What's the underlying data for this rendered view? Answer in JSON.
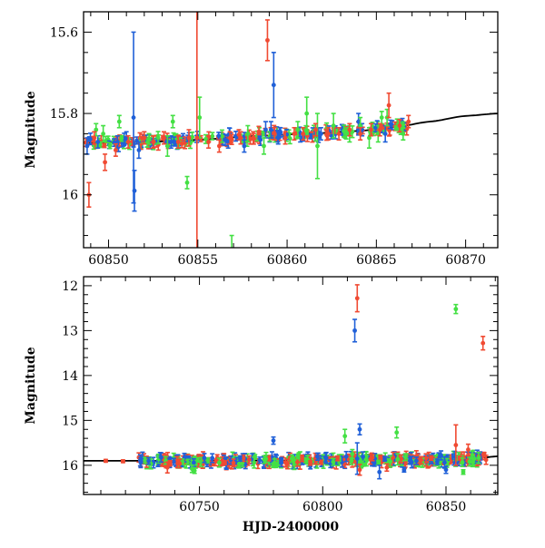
{
  "chart_data": [
    {
      "type": "scatter",
      "title": "",
      "xlabel": "",
      "ylabel": "Magnitude",
      "xlim": [
        60848.6,
        60871.8
      ],
      "ylim": [
        16.13,
        15.55
      ],
      "y_inverted": true,
      "x_ticks": [
        60850,
        60855,
        60860,
        60865,
        60870
      ],
      "x_tick_labels": [
        "60850",
        "60855",
        "60860",
        "60865",
        "60870"
      ],
      "y_ticks": [
        15.6,
        15.8,
        16.0
      ],
      "y_tick_labels": [
        "15.6",
        "15.8",
        "16"
      ],
      "grid": false,
      "legend": "none",
      "series": [
        {
          "color": "#2060d8",
          "points": [
            {
              "x": 60848.8,
              "y": 15.88,
              "err": 0.02
            },
            {
              "x": 60849.4,
              "y": 15.87,
              "err": 0.015
            },
            {
              "x": 60850.5,
              "y": 15.87,
              "err": 0.015
            },
            {
              "x": 60851.0,
              "y": 15.86,
              "err": 0.015
            },
            {
              "x": 60851.4,
              "y": 15.81,
              "err": 0.21
            },
            {
              "x": 60851.45,
              "y": 15.99,
              "err": 0.05
            },
            {
              "x": 60851.7,
              "y": 15.89,
              "err": 0.02
            },
            {
              "x": 60853.5,
              "y": 15.87,
              "err": 0.015
            },
            {
              "x": 60856.7,
              "y": 15.87,
              "err": 0.015
            },
            {
              "x": 60857.6,
              "y": 15.88,
              "err": 0.015
            },
            {
              "x": 60858.8,
              "y": 15.84,
              "err": 0.02
            },
            {
              "x": 60859.1,
              "y": 15.84,
              "err": 0.02
            },
            {
              "x": 60859.25,
              "y": 15.73,
              "err": 0.08
            },
            {
              "x": 60859.5,
              "y": 15.86,
              "err": 0.015
            },
            {
              "x": 60861.9,
              "y": 15.85,
              "err": 0.015
            },
            {
              "x": 60864.0,
              "y": 15.82,
              "err": 0.02
            },
            {
              "x": 60864.2,
              "y": 15.84,
              "err": 0.015
            },
            {
              "x": 60865.5,
              "y": 15.85,
              "err": 0.02
            }
          ]
        },
        {
          "color": "#44e044",
          "points": [
            {
              "x": 60849.3,
              "y": 15.84,
              "err": 0.015
            },
            {
              "x": 60849.7,
              "y": 15.85,
              "err": 0.02
            },
            {
              "x": 60850.6,
              "y": 15.82,
              "err": 0.015
            },
            {
              "x": 60853.3,
              "y": 15.88,
              "err": 0.025
            },
            {
              "x": 60853.6,
              "y": 15.82,
              "err": 0.015
            },
            {
              "x": 60854.4,
              "y": 15.97,
              "err": 0.015
            },
            {
              "x": 60855.1,
              "y": 15.81,
              "err": 0.05
            },
            {
              "x": 60856.9,
              "y": 16.15,
              "err": 0.05
            },
            {
              "x": 60857.8,
              "y": 15.85,
              "err": 0.02
            },
            {
              "x": 60858.7,
              "y": 15.88,
              "err": 0.02
            },
            {
              "x": 60860.6,
              "y": 15.84,
              "err": 0.02
            },
            {
              "x": 60861.1,
              "y": 15.8,
              "err": 0.04
            },
            {
              "x": 60861.7,
              "y": 15.88,
              "err": 0.08
            },
            {
              "x": 60862.6,
              "y": 15.83,
              "err": 0.03
            },
            {
              "x": 60863.5,
              "y": 15.85,
              "err": 0.02
            },
            {
              "x": 60864.1,
              "y": 15.83,
              "err": 0.02
            },
            {
              "x": 60864.6,
              "y": 15.86,
              "err": 0.025
            },
            {
              "x": 60865.1,
              "y": 15.85,
              "err": 0.02
            },
            {
              "x": 60865.3,
              "y": 15.81,
              "err": 0.015
            },
            {
              "x": 60865.6,
              "y": 15.81,
              "err": 0.02
            },
            {
              "x": 60866.5,
              "y": 15.85,
              "err": 0.015
            }
          ]
        },
        {
          "color": "#f04a32",
          "points": [
            {
              "x": 60848.9,
              "y": 16.0,
              "err": 0.03
            },
            {
              "x": 60849.2,
              "y": 15.86,
              "err": 0.015
            },
            {
              "x": 60849.8,
              "y": 15.92,
              "err": 0.02
            },
            {
              "x": 60850.4,
              "y": 15.89,
              "err": 0.015
            },
            {
              "x": 60851.1,
              "y": 15.87,
              "err": 0.015
            },
            {
              "x": 60852.0,
              "y": 15.86,
              "err": 0.015
            },
            {
              "x": 60852.5,
              "y": 15.87,
              "err": 0.015
            },
            {
              "x": 60853.1,
              "y": 15.86,
              "err": 0.015
            },
            {
              "x": 60853.9,
              "y": 15.87,
              "err": 0.015
            },
            {
              "x": 60854.5,
              "y": 15.86,
              "err": 0.02
            },
            {
              "x": 60854.95,
              "y": 15.86,
              "err": 0.4
            },
            {
              "x": 60855.6,
              "y": 15.87,
              "err": 0.015
            },
            {
              "x": 60856.2,
              "y": 15.88,
              "err": 0.015
            },
            {
              "x": 60856.8,
              "y": 15.86,
              "err": 0.015
            },
            {
              "x": 60857.4,
              "y": 15.86,
              "err": 0.015
            },
            {
              "x": 60858.1,
              "y": 15.86,
              "err": 0.015
            },
            {
              "x": 60858.9,
              "y": 15.62,
              "err": 0.05
            },
            {
              "x": 60859.3,
              "y": 15.85,
              "err": 0.015
            },
            {
              "x": 60859.9,
              "y": 15.86,
              "err": 0.015
            },
            {
              "x": 60860.4,
              "y": 15.85,
              "err": 0.015
            },
            {
              "x": 60860.9,
              "y": 15.85,
              "err": 0.015
            },
            {
              "x": 60861.6,
              "y": 15.84,
              "err": 0.015
            },
            {
              "x": 60862.3,
              "y": 15.85,
              "err": 0.015
            },
            {
              "x": 60862.9,
              "y": 15.85,
              "err": 0.015
            },
            {
              "x": 60863.5,
              "y": 15.84,
              "err": 0.015
            },
            {
              "x": 60864.1,
              "y": 15.85,
              "err": 0.015
            },
            {
              "x": 60864.7,
              "y": 15.84,
              "err": 0.015
            },
            {
              "x": 60865.2,
              "y": 15.84,
              "err": 0.015
            },
            {
              "x": 60865.7,
              "y": 15.78,
              "err": 0.03
            },
            {
              "x": 60866.3,
              "y": 15.83,
              "err": 0.015
            },
            {
              "x": 60866.8,
              "y": 15.82,
              "err": 0.015
            }
          ]
        }
      ],
      "dense_band": {
        "colors": [
          "#f04a32",
          "#2060d8",
          "#44e044"
        ],
        "x_range": [
          60848.7,
          60866.9
        ],
        "n_points": 240
      },
      "model_curve": {
        "color": "#000000",
        "x": [
          60848.6,
          60852,
          60855,
          60858,
          60861,
          60864,
          60866,
          60868,
          60870,
          60871.8
        ],
        "y": [
          15.872,
          15.87,
          15.865,
          15.856,
          15.85,
          15.843,
          15.834,
          15.82,
          15.806,
          15.8
        ]
      }
    },
    {
      "type": "scatter",
      "title": "",
      "xlabel": "HJD-2400000",
      "ylabel": "Magnitude",
      "xlim": [
        60703,
        60871
      ],
      "ylim": [
        16.65,
        11.8
      ],
      "y_inverted": true,
      "x_ticks": [
        60750,
        60800,
        60850
      ],
      "x_tick_labels": [
        "60750",
        "60800",
        "60850"
      ],
      "y_ticks": [
        12,
        13,
        14,
        15,
        16
      ],
      "y_tick_labels": [
        "12",
        "13",
        "14",
        "15",
        "16"
      ],
      "grid": false,
      "legend": "none",
      "series": [
        {
          "color": "#2060d8",
          "points": [
            {
              "x": 60780,
              "y": 15.45,
              "err": 0.08
            },
            {
              "x": 60813,
              "y": 13.0,
              "err": 0.25
            },
            {
              "x": 60815,
              "y": 15.2,
              "err": 0.12
            },
            {
              "x": 60814,
              "y": 15.85,
              "err": 0.35
            },
            {
              "x": 60823,
              "y": 16.15,
              "err": 0.15
            },
            {
              "x": 60833,
              "y": 16.1,
              "err": 0.05
            },
            {
              "x": 60838,
              "y": 15.9,
              "err": 0.08
            },
            {
              "x": 60848,
              "y": 15.78,
              "err": 0.1
            },
            {
              "x": 60850,
              "y": 16.1,
              "err": 0.08
            },
            {
              "x": 60795,
              "y": 16.02,
              "err": 0.06
            }
          ]
        },
        {
          "color": "#44e044",
          "points": [
            {
              "x": 60747,
              "y": 16.08,
              "err": 0.08
            },
            {
              "x": 60748,
              "y": 16.12,
              "err": 0.06
            },
            {
              "x": 60809,
              "y": 15.35,
              "err": 0.15
            },
            {
              "x": 60812,
              "y": 15.75,
              "err": 0.1
            },
            {
              "x": 60830,
              "y": 15.27,
              "err": 0.12
            },
            {
              "x": 60854,
              "y": 12.52,
              "err": 0.1
            },
            {
              "x": 60857,
              "y": 16.15,
              "err": 0.05
            },
            {
              "x": 60780,
              "y": 16.0,
              "err": 0.05
            },
            {
              "x": 60790,
              "y": 15.8,
              "err": 0.05
            }
          ]
        },
        {
          "color": "#f04a32",
          "points": [
            {
              "x": 60712,
              "y": 15.9,
              "err": 0.03
            },
            {
              "x": 60719,
              "y": 15.91,
              "err": 0.03
            },
            {
              "x": 60737,
              "y": 16.05,
              "err": 0.12
            },
            {
              "x": 60814,
              "y": 12.28,
              "err": 0.3
            },
            {
              "x": 60815,
              "y": 16.1,
              "err": 0.12
            },
            {
              "x": 60854,
              "y": 15.55,
              "err": 0.45
            },
            {
              "x": 60865,
              "y": 13.28,
              "err": 0.15
            },
            {
              "x": 60859,
              "y": 15.65,
              "err": 0.12
            },
            {
              "x": 60826,
              "y": 16.05,
              "err": 0.08
            },
            {
              "x": 60795,
              "y": 15.95,
              "err": 0.05
            }
          ]
        }
      ],
      "dense_band": {
        "colors": [
          "#2060d8",
          "#44e044",
          "#f04a32"
        ],
        "x_range": [
          60725,
          60867
        ],
        "n_points": 520
      },
      "model_curve": {
        "color": "#000000",
        "x": [
          60703,
          60750,
          60800,
          60840,
          60860,
          60871
        ],
        "y": [
          15.9,
          15.9,
          15.89,
          15.88,
          15.86,
          15.8
        ]
      }
    }
  ]
}
